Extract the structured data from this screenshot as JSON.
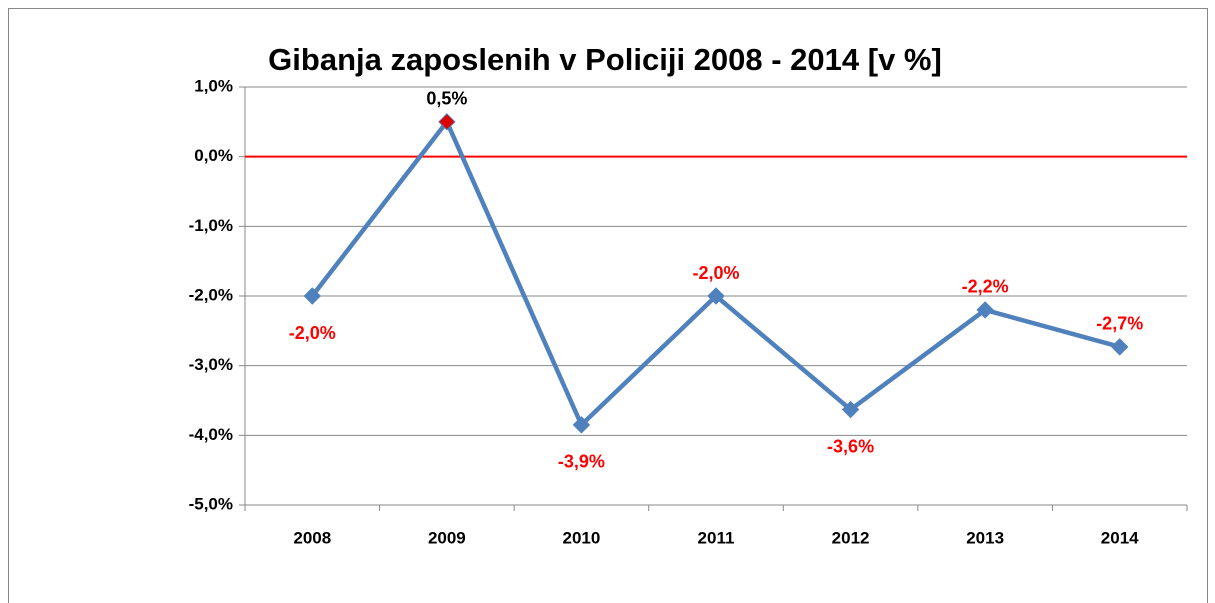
{
  "chart_data": {
    "type": "line",
    "title": "Gibanja zaposlenih v Policiji 2008 - 2014 [v %]",
    "categories": [
      "2008",
      "2009",
      "2010",
      "2011",
      "2012",
      "2013",
      "2014"
    ],
    "series": [
      {
        "name": "Gibanja zaposlenih",
        "color": "#4f81bd",
        "values": [
          -2.0,
          0.5,
          -3.85,
          -2.0,
          -3.63,
          -2.2,
          -2.73
        ],
        "value_labels": [
          "-2,0%",
          "0,5%",
          "-3,9%",
          "-2,0%",
          "-3,6%",
          "-2,2%",
          "-2,7%"
        ],
        "point_colors": [
          "#4f81bd",
          "#e00000",
          "#4f81bd",
          "#4f81bd",
          "#4f81bd",
          "#4f81bd",
          "#4f81bd"
        ],
        "label_colors": [
          "#ff0000",
          "#000000",
          "#ff0000",
          "#ff0000",
          "#ff0000",
          "#ff0000",
          "#ff0000"
        ],
        "label_positions": [
          "below",
          "above",
          "below",
          "above",
          "below",
          "above",
          "above"
        ]
      }
    ],
    "ylim": [
      -5,
      1
    ],
    "yticks": [
      {
        "value": -5,
        "label": "-5,0%"
      },
      {
        "value": -4,
        "label": "-4,0%"
      },
      {
        "value": -3,
        "label": "-3,0%"
      },
      {
        "value": -2,
        "label": "-2,0%"
      },
      {
        "value": -1,
        "label": "-1,0%"
      },
      {
        "value": 0,
        "label": "0,0%"
      },
      {
        "value": 1,
        "label": "1,0%"
      }
    ],
    "grid": true,
    "reference_line": {
      "value": 0,
      "color": "#ff0000"
    }
  }
}
